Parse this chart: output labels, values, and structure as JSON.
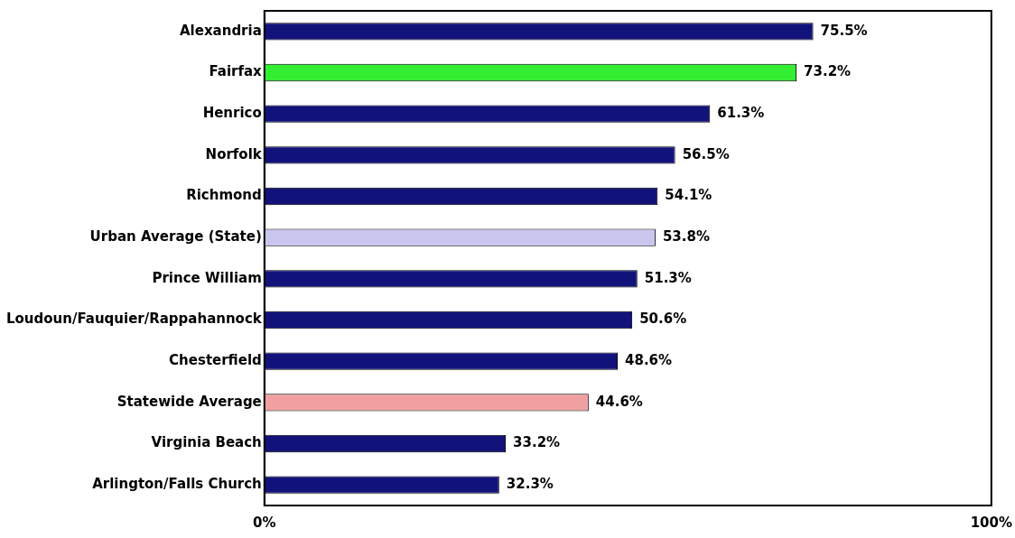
{
  "chart_data": {
    "type": "bar",
    "orientation": "horizontal",
    "categories": [
      "Alexandria",
      "Fairfax",
      "Henrico",
      "Norfolk",
      "Richmond",
      "Urban Average (State)",
      "Prince William",
      "Loudoun/Fauquier/Rappahannock",
      "Chesterfield",
      "Statewide Average",
      "Virginia Beach",
      "Arlington/Falls Church"
    ],
    "values": [
      75.5,
      73.2,
      61.3,
      56.5,
      54.1,
      53.8,
      51.3,
      50.6,
      48.6,
      44.6,
      33.2,
      32.3
    ],
    "colors": [
      "#12137a",
      "#33ee33",
      "#12137a",
      "#12137a",
      "#12137a",
      "#c9c6ee",
      "#12137a",
      "#12137a",
      "#12137a",
      "#f0a0a0",
      "#12137a",
      "#12137a"
    ],
    "value_labels": [
      "75.5%",
      "73.2%",
      "61.3%",
      "56.5%",
      "54.1%",
      "53.8%",
      "51.3%",
      "50.6%",
      "48.6%",
      "44.6%",
      "33.2%",
      "32.3%"
    ],
    "xlim": [
      0,
      100
    ],
    "xticks": [
      {
        "value": 0,
        "label": "0%"
      },
      {
        "value": 100,
        "label": "100%"
      }
    ],
    "grid": false,
    "legend": false
  }
}
